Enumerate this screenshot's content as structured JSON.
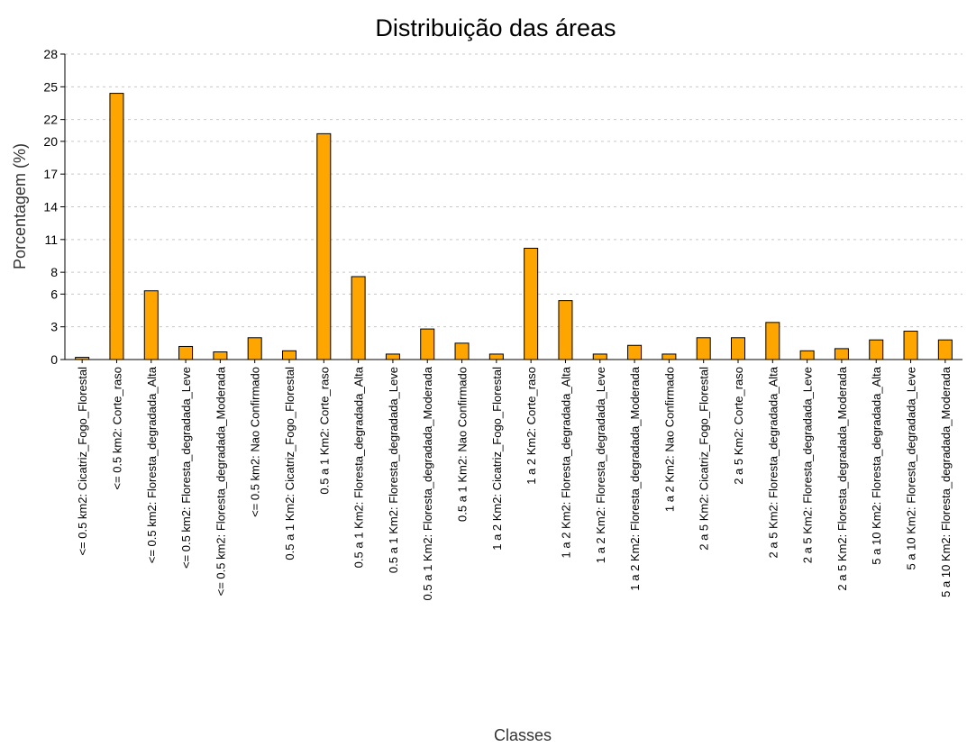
{
  "chart_data": {
    "type": "bar",
    "title": "Distribuição das áreas",
    "xlabel": "Classes",
    "ylabel": "Porcentagem (%)",
    "ylim": [
      0,
      28
    ],
    "yticks": [
      0,
      3,
      6,
      8,
      11,
      14,
      17,
      20,
      22,
      25,
      28
    ],
    "grid": true,
    "bar_color": "#FFA500",
    "categories": [
      "<= 0.5 km2: Cicatriz_Fogo_Florestal",
      "<= 0.5 km2: Corte_raso",
      "<= 0.5 km2: Floresta_degradada_Alta",
      "<= 0.5 km2: Floresta_degradada_Leve",
      "<= 0.5 km2: Floresta_degradada_Moderada",
      "<= 0.5 km2: Nao Confirmado",
      "0.5 a 1 Km2: Cicatriz_Fogo_Florestal",
      "0.5 a 1 Km2: Corte_raso",
      "0.5 a 1 Km2: Floresta_degradada_Alta",
      "0.5 a 1 Km2: Floresta_degradada_Leve",
      "0.5 a 1 Km2: Floresta_degradada_Moderada",
      "0.5 a 1 Km2: Nao Confirmado",
      "1 a 2 Km2: Cicatriz_Fogo_Florestal",
      "1 a 2 Km2: Corte_raso",
      "1 a 2 Km2: Floresta_degradada_Alta",
      "1 a 2 Km2: Floresta_degradada_Leve",
      "1 a 2 Km2: Floresta_degradada_Moderada",
      "1 a 2 Km2: Nao Confirmado",
      "2 a 5 Km2: Cicatriz_Fogo_Florestal",
      "2 a 5 Km2: Corte_raso",
      "2 a 5 Km2: Floresta_degradada_Alta",
      "2 a 5 Km2: Floresta_degradada_Leve",
      "2 a 5 Km2: Floresta_degradada_Moderada",
      "5 a 10 Km2: Floresta_degradada_Alta",
      "5 a 10 Km2: Floresta_degradada_Leve",
      "5 a 10 Km2: Floresta_degradada_Moderada"
    ],
    "values": [
      0.2,
      24.4,
      6.3,
      1.2,
      0.7,
      2.0,
      0.8,
      20.7,
      7.6,
      0.5,
      2.8,
      1.5,
      0.5,
      10.2,
      5.4,
      0.5,
      1.3,
      0.5,
      2.0,
      2.0,
      3.4,
      0.8,
      1.0,
      1.8,
      2.6,
      1.8
    ]
  }
}
